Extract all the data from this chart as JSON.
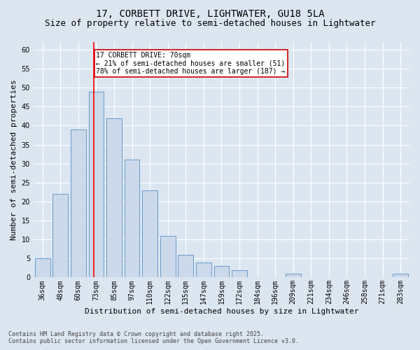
{
  "title1": "17, CORBETT DRIVE, LIGHTWATER, GU18 5LA",
  "title2": "Size of property relative to semi-detached houses in Lightwater",
  "xlabel": "Distribution of semi-detached houses by size in Lightwater",
  "ylabel": "Number of semi-detached properties",
  "footnote": "Contains HM Land Registry data © Crown copyright and database right 2025.\nContains public sector information licensed under the Open Government Licence v3.0.",
  "categories": [
    "36sqm",
    "48sqm",
    "60sqm",
    "73sqm",
    "85sqm",
    "97sqm",
    "110sqm",
    "122sqm",
    "135sqm",
    "147sqm",
    "159sqm",
    "172sqm",
    "184sqm",
    "196sqm",
    "209sqm",
    "221sqm",
    "234sqm",
    "246sqm",
    "258sqm",
    "271sqm",
    "283sqm"
  ],
  "values": [
    5,
    22,
    39,
    49,
    42,
    31,
    23,
    11,
    6,
    4,
    3,
    2,
    0,
    0,
    1,
    0,
    0,
    0,
    0,
    0,
    1
  ],
  "bar_color": "#ccd9ea",
  "bar_edge_color": "#6699cc",
  "ref_line_label": "17 CORBETT DRIVE: 70sqm",
  "ref_line_smaller": "← 21% of semi-detached houses are smaller (51)",
  "ref_line_larger": "78% of semi-detached houses are larger (187) →",
  "annotation_box_color": "#cc0000",
  "ylim": [
    0,
    62
  ],
  "yticks": [
    0,
    5,
    10,
    15,
    20,
    25,
    30,
    35,
    40,
    45,
    50,
    55,
    60
  ],
  "background_color": "#dce6f1",
  "plot_bg_color": "#dce6f1",
  "grid_color": "#ffffff",
  "title1_fontsize": 10,
  "title2_fontsize": 9,
  "xlabel_fontsize": 8,
  "ylabel_fontsize": 8,
  "tick_fontsize": 7,
  "footnote_fontsize": 6,
  "annot_fontsize": 7
}
